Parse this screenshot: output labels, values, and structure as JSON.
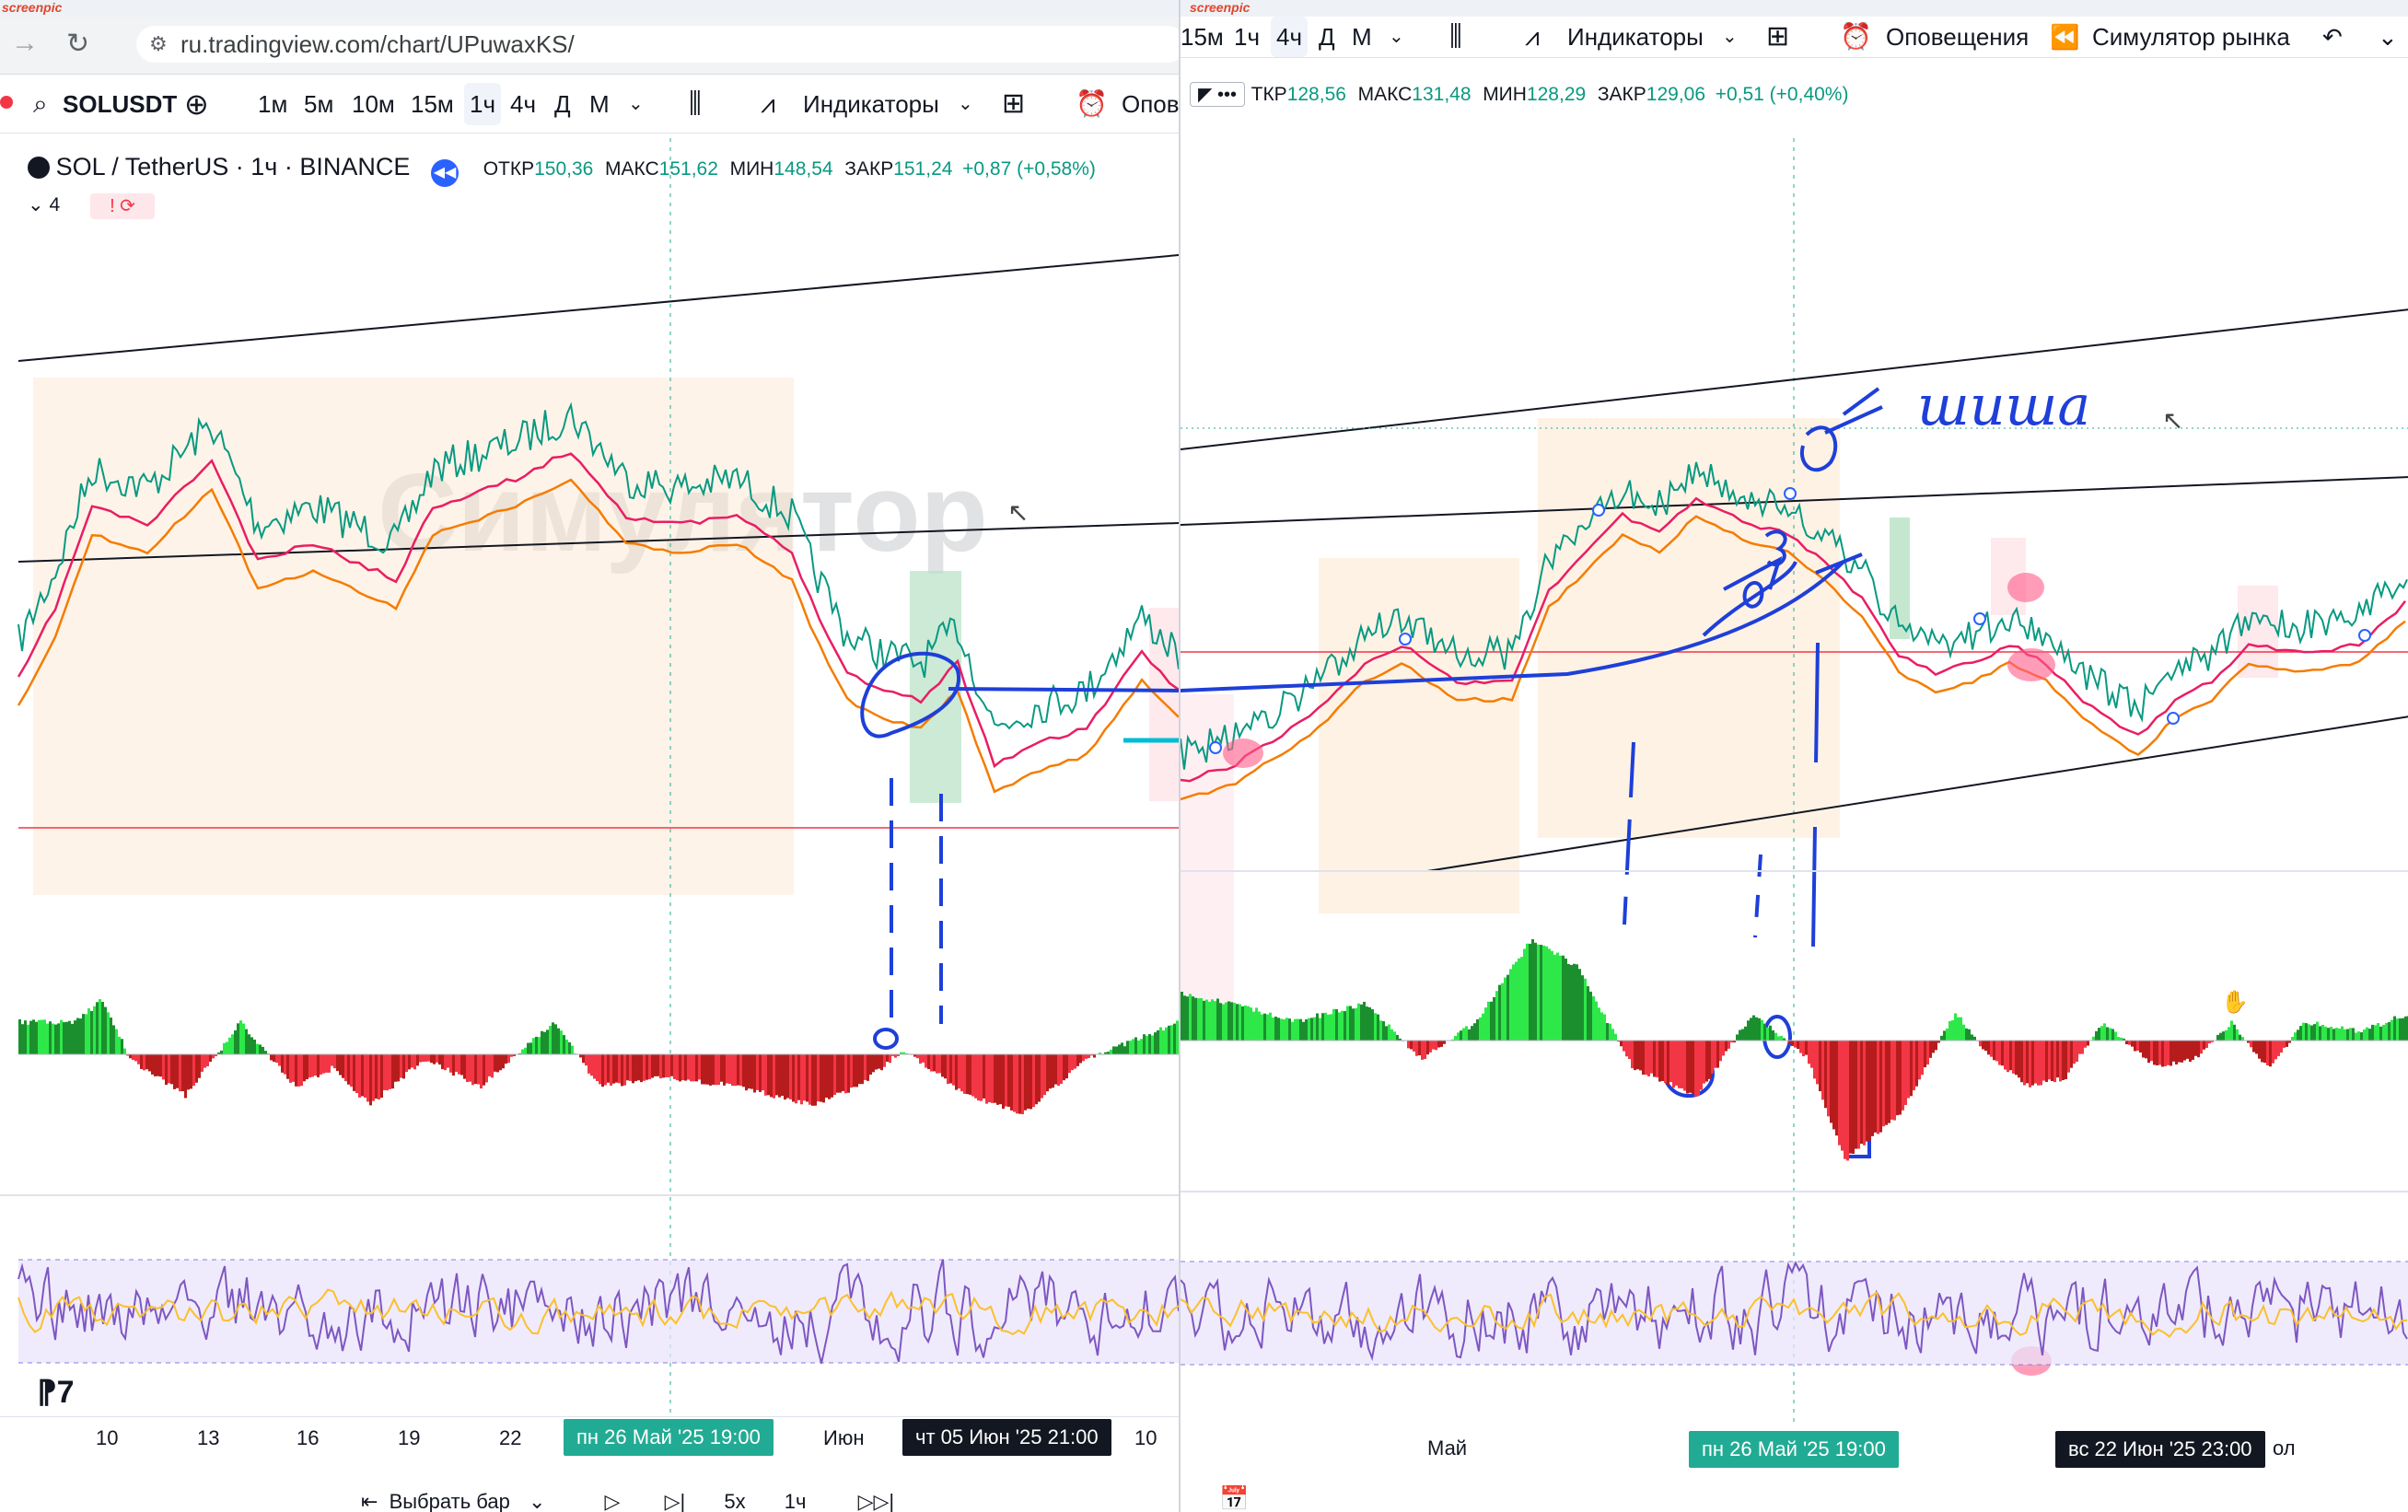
{
  "browser": {
    "url": "ru.tradingview.com/chart/UPuwaxKS/",
    "snip_brand": "screenpic"
  },
  "colors": {
    "bull": "#089981",
    "bear": "#f23645",
    "ma1": "#e91e63",
    "ma2": "#f57c00",
    "annot": "#1e3fd8",
    "highlight": "#ff5c8a",
    "rsi_band": "#e9e4fb"
  },
  "left": {
    "symbol": "SOLUSDT",
    "intervals": [
      "1м",
      "5м",
      "10м",
      "15м",
      "1ч",
      "4ч",
      "Д",
      "М"
    ],
    "active_interval": "1ч",
    "indicators_label": "Индикаторы",
    "alerts_label": "Опове",
    "legend": {
      "title": "SOL / TetherUS · 1ч · BINANCE",
      "o_label": "ОТКР",
      "o": "150,36",
      "h_label": "МАКС",
      "h": "151,62",
      "l_label": "МИН",
      "l": "148,54",
      "c_label": "ЗАКР",
      "c": "151,24",
      "change": "+0,87 (+0,58%)"
    },
    "indicator_count": "4",
    "watermark": "Симулятор",
    "x_ticks": [
      "10",
      "13",
      "16",
      "19",
      "22",
      "Июн",
      "10"
    ],
    "crosshair_label": "пн 26 Май '25   19:00",
    "cursor_label": "чт 05 Июн '25   21:00",
    "replay": {
      "select_bar": "Выбрать бар",
      "speed": "5x",
      "interval": "1ч"
    }
  },
  "right": {
    "intervals": [
      "15м",
      "1ч",
      "4ч",
      "Д",
      "М"
    ],
    "active_interval": "4ч",
    "indicators_label": "Индикаторы",
    "alerts_label": "Оповещения",
    "simulator_label": "Симулятор рынка",
    "legend": {
      "o_label": "ТКР",
      "o": "128,56",
      "h_label": "МАКС",
      "h": "131,48",
      "l_label": "МИН",
      "l": "128,29",
      "c_label": "ЗАКР",
      "c": "129,06",
      "change": "+0,51 (+0,40%)"
    },
    "x_ticks": [
      "Май",
      "ол"
    ],
    "crosshair_label": "пн 26 Май '25   19:00",
    "cursor_label": "вс 22 Июн '25   23:00",
    "handwriting": "шиша"
  }
}
